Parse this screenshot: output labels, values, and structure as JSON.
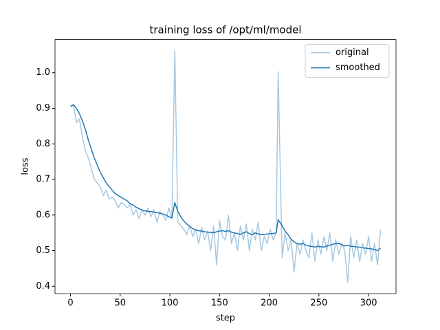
{
  "chart_data": {
    "type": "line",
    "title": "training loss of /opt/ml/model",
    "xlabel": "step",
    "ylabel": "loss",
    "x": [
      0,
      3,
      6,
      9,
      12,
      15,
      18,
      21,
      24,
      27,
      30,
      33,
      36,
      39,
      42,
      45,
      48,
      51,
      54,
      57,
      60,
      63,
      66,
      69,
      72,
      75,
      78,
      81,
      84,
      87,
      90,
      93,
      96,
      99,
      102,
      105,
      108,
      111,
      114,
      117,
      120,
      123,
      126,
      129,
      132,
      135,
      138,
      141,
      144,
      147,
      150,
      153,
      156,
      159,
      162,
      165,
      168,
      171,
      174,
      177,
      180,
      183,
      186,
      189,
      192,
      195,
      198,
      201,
      204,
      207,
      209,
      213,
      216,
      219,
      222,
      225,
      228,
      231,
      234,
      237,
      240,
      243,
      246,
      249,
      252,
      255,
      258,
      261,
      264,
      267,
      270,
      273,
      276,
      279,
      282,
      285,
      288,
      291,
      294,
      297,
      300,
      303,
      306,
      309,
      312
    ],
    "series": [
      {
        "name": "original",
        "color": "#a6c8e1",
        "values": [
          0.905,
          0.91,
          0.86,
          0.87,
          0.82,
          0.78,
          0.76,
          0.73,
          0.7,
          0.69,
          0.68,
          0.655,
          0.67,
          0.645,
          0.65,
          0.64,
          0.62,
          0.635,
          0.63,
          0.62,
          0.63,
          0.6,
          0.615,
          0.59,
          0.615,
          0.6,
          0.62,
          0.595,
          0.615,
          0.58,
          0.61,
          0.6,
          0.585,
          0.62,
          0.59,
          1.061,
          0.58,
          0.57,
          0.56,
          0.545,
          0.57,
          0.54,
          0.56,
          0.52,
          0.565,
          0.53,
          0.555,
          0.5,
          0.57,
          0.46,
          0.585,
          0.54,
          0.53,
          0.6,
          0.52,
          0.55,
          0.5,
          0.57,
          0.53,
          0.575,
          0.5,
          0.56,
          0.53,
          0.58,
          0.5,
          0.54,
          0.52,
          0.56,
          0.53,
          0.55,
          1.003,
          0.48,
          0.55,
          0.5,
          0.53,
          0.44,
          0.52,
          0.49,
          0.53,
          0.5,
          0.48,
          0.55,
          0.47,
          0.53,
          0.49,
          0.54,
          0.5,
          0.55,
          0.47,
          0.53,
          0.49,
          0.52,
          0.5,
          0.411,
          0.54,
          0.48,
          0.53,
          0.47,
          0.52,
          0.49,
          0.54,
          0.47,
          0.52,
          0.46,
          0.558
        ]
      },
      {
        "name": "smoothed",
        "color": "#1f77b4",
        "values": [
          0.905,
          0.91,
          0.9,
          0.885,
          0.865,
          0.84,
          0.81,
          0.785,
          0.76,
          0.74,
          0.72,
          0.705,
          0.69,
          0.68,
          0.67,
          0.66,
          0.655,
          0.65,
          0.645,
          0.64,
          0.632,
          0.628,
          0.622,
          0.618,
          0.614,
          0.612,
          0.61,
          0.61,
          0.608,
          0.607,
          0.605,
          0.603,
          0.6,
          0.595,
          0.592,
          0.635,
          0.61,
          0.595,
          0.583,
          0.575,
          0.568,
          0.562,
          0.558,
          0.556,
          0.555,
          0.553,
          0.552,
          0.551,
          0.55,
          0.553,
          0.555,
          0.556,
          0.554,
          0.556,
          0.552,
          0.55,
          0.548,
          0.545,
          0.55,
          0.553,
          0.548,
          0.545,
          0.55,
          0.547,
          0.545,
          0.545,
          0.547,
          0.548,
          0.548,
          0.55,
          0.587,
          0.57,
          0.555,
          0.545,
          0.532,
          0.525,
          0.52,
          0.518,
          0.52,
          0.515,
          0.513,
          0.512,
          0.51,
          0.512,
          0.511,
          0.51,
          0.513,
          0.515,
          0.518,
          0.52,
          0.52,
          0.517,
          0.513,
          0.515,
          0.512,
          0.512,
          0.51,
          0.51,
          0.508,
          0.507,
          0.506,
          0.505,
          0.503,
          0.5,
          0.507
        ]
      }
    ],
    "xlim": [
      -15.6,
      327.6
    ],
    "ylim": [
      0.379,
      1.093
    ],
    "xticks": [
      0,
      50,
      100,
      150,
      200,
      250,
      300
    ],
    "yticks": [
      0.4,
      0.5,
      0.6,
      0.7,
      0.8,
      0.9,
      {
        "value": 1,
        "label": "1.0"
      }
    ],
    "legend": "upper right"
  }
}
